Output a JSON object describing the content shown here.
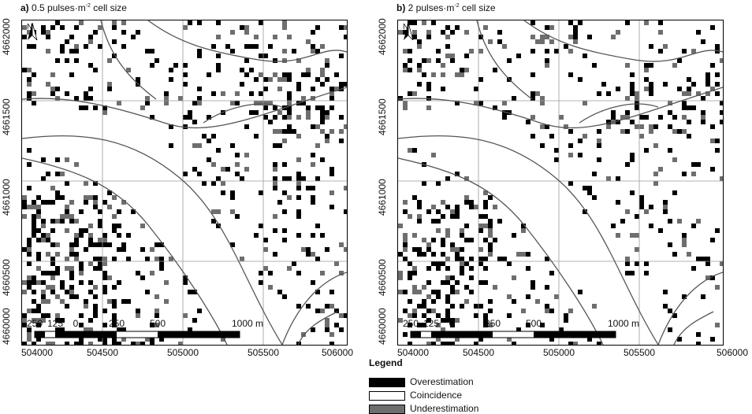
{
  "panels": [
    {
      "letter": "a)",
      "title_pre": "0.5 pulses·m",
      "title_sup": "-2",
      "title_post": " cell size",
      "seed": 17,
      "density": 1.0
    },
    {
      "letter": "b)",
      "title_pre": "2 pulses·m",
      "title_sup": "-2",
      "title_post": " cell size",
      "seed": 91,
      "density": 0.85
    }
  ],
  "x_ticks": [
    "504000",
    "504500",
    "505000",
    "505500",
    "506000"
  ],
  "y_ticks": [
    "4660000",
    "4660500",
    "4661000",
    "4661500",
    "4662000"
  ],
  "north_label": "N",
  "scale_bar": {
    "labels": [
      "250",
      "125",
      "0",
      "250",
      "500",
      "1000 m"
    ]
  },
  "legend": {
    "title": "Legend",
    "items": [
      {
        "label": "Overestimation",
        "color": "#000000"
      },
      {
        "label": "Coincidence",
        "color": "#ffffff"
      },
      {
        "label": "Underestimation",
        "color": "#6e6e6e"
      }
    ]
  },
  "colors": {
    "over": "#000000",
    "under": "#6e6e6e",
    "grid": "#9a9a9a",
    "boundary": "#555555"
  }
}
